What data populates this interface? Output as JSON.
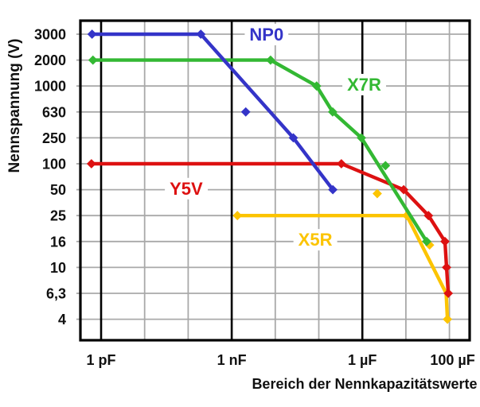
{
  "figure": {
    "background": "#ffffff",
    "y_axis_title": "Nennspannung (V)",
    "x_axis_title": "Bereich der Nennkapazitätswerte"
  },
  "chart_data": {
    "type": "line",
    "description": "Rated voltage vs rated capacitance range for ceramic capacitor dielectric classes",
    "x_scale": "log",
    "x_unit": "pF",
    "x_range_pF": [
      0.35,
      300000000
    ],
    "grid": true,
    "colors": {
      "grid": "#a9a9a9",
      "frame": "#000000",
      "np0": "#3434c8",
      "x7r": "#33b833",
      "y5v": "#dd1111",
      "x5r": "#fcc400"
    },
    "y_ticks": [
      {
        "label": "3000",
        "v": 3000
      },
      {
        "label": "2000",
        "v": 2000
      },
      {
        "label": "1000",
        "v": 1000
      },
      {
        "label": "630",
        "v": 630
      },
      {
        "label": "250",
        "v": 250
      },
      {
        "label": "100",
        "v": 100
      },
      {
        "label": "50",
        "v": 50
      },
      {
        "label": "25",
        "v": 25
      },
      {
        "label": "16",
        "v": 16
      },
      {
        "label": "10",
        "v": 10
      },
      {
        "label": "6,3",
        "v": 6.3
      },
      {
        "label": "4",
        "v": 4
      }
    ],
    "x_ticks": [
      {
        "pF": 1,
        "label": "1 pF",
        "major": true
      },
      {
        "pF": 10,
        "label": "",
        "major": false
      },
      {
        "pF": 100,
        "label": "",
        "major": false
      },
      {
        "pF": 1000,
        "label": "1 nF",
        "major": true
      },
      {
        "pF": 10000,
        "label": "",
        "major": false
      },
      {
        "pF": 100000,
        "label": "",
        "major": false
      },
      {
        "pF": 1000000,
        "label": "1 µF",
        "major": true
      },
      {
        "pF": 10000000,
        "label": "",
        "major": false
      },
      {
        "pF": 100000000,
        "label": "100 µF",
        "major": false
      }
    ],
    "series": [
      {
        "id": "x5r",
        "name": "X5R",
        "color": "#fcc400",
        "label_at": {
          "pF": 83000,
          "v": 16.6
        },
        "line": [
          [
            1350,
            25
          ],
          [
            10500000,
            25
          ],
          [
            84000000,
            6.3
          ],
          [
            90000000,
            4
          ]
        ],
        "markers": [
          [
            1350,
            25
          ],
          [
            10500000,
            25
          ],
          [
            90000000,
            4
          ]
        ],
        "stray_markers": [
          [
            2200000,
            45
          ],
          [
            35000000,
            15
          ]
        ]
      },
      {
        "id": "y5v",
        "name": "Y5V",
        "color": "#dd1111",
        "label_at": {
          "pF": 90,
          "v": 52
        },
        "line": [
          [
            0.6,
            100
          ],
          [
            330000,
            100
          ],
          [
            8900000,
            50
          ],
          [
            33000000,
            25
          ],
          [
            79000000,
            16
          ],
          [
            86000000,
            10
          ],
          [
            94000000,
            6.3
          ]
        ],
        "markers": [
          [
            0.6,
            100
          ],
          [
            330000,
            100
          ],
          [
            8900000,
            50
          ],
          [
            33000000,
            25
          ],
          [
            79000000,
            16
          ],
          [
            86000000,
            10
          ],
          [
            94000000,
            6.3
          ]
        ],
        "stray_markers": []
      },
      {
        "id": "x7r",
        "name": "X7R",
        "color": "#33b833",
        "label_at": {
          "pF": 1100000,
          "v": 1050
        },
        "line": [
          [
            0.65,
            2000
          ],
          [
            7800,
            2000
          ],
          [
            89000,
            1000
          ],
          [
            208000,
            630
          ],
          [
            950000,
            250
          ],
          [
            30000000,
            16
          ]
        ],
        "markers": [
          [
            0.65,
            2000
          ],
          [
            7800,
            2000
          ],
          [
            89000,
            1000
          ],
          [
            208000,
            630
          ],
          [
            950000,
            250
          ],
          [
            30000000,
            16
          ]
        ],
        "stray_markers": [
          [
            3400000,
            95
          ]
        ]
      },
      {
        "id": "np0",
        "name": "NP0",
        "color": "#3434c8",
        "label_at": {
          "pF": 6300,
          "v": 3000
        },
        "line": [
          [
            0.62,
            3000
          ],
          [
            195,
            3000
          ],
          [
            26000,
            250
          ],
          [
            210000,
            50
          ]
        ],
        "markers": [
          [
            0.62,
            3000
          ],
          [
            195,
            3000
          ],
          [
            26000,
            250
          ],
          [
            210000,
            50
          ]
        ],
        "stray_markers": [
          [
            2100,
            630
          ]
        ]
      }
    ]
  }
}
